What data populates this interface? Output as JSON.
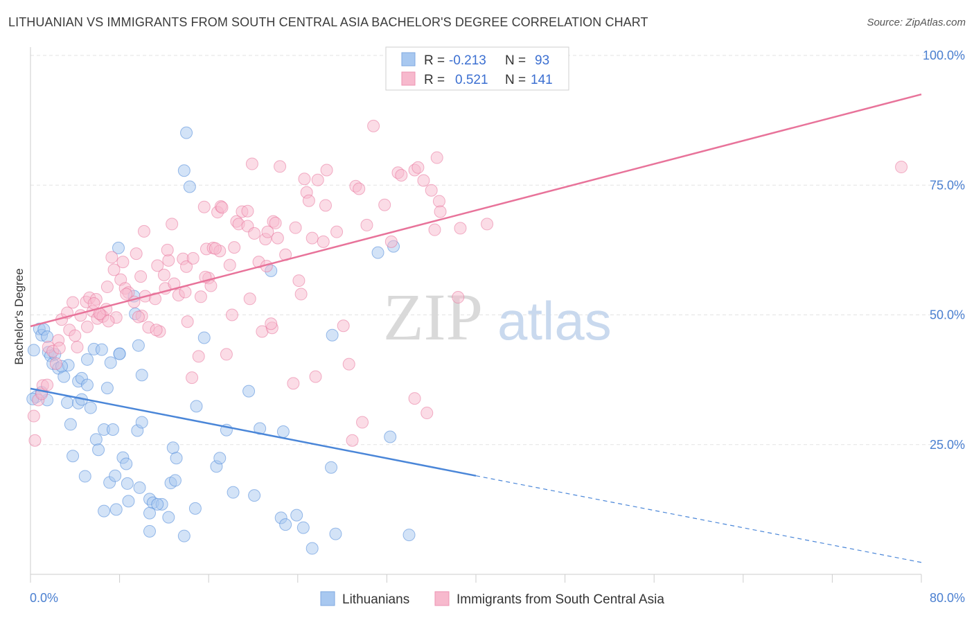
{
  "header": {
    "title": "LITHUANIAN VS IMMIGRANTS FROM SOUTH CENTRAL ASIA BACHELOR'S DEGREE CORRELATION CHART",
    "source": "Source: ZipAtlas.com"
  },
  "watermark": {
    "zip": "ZIP",
    "atlas": "atlas"
  },
  "legend_top": {
    "rows": [
      {
        "r_label": "R = ",
        "r_value": "-0.213",
        "n_label": "N = ",
        "n_value": "93",
        "color": "#a8c8f0"
      },
      {
        "r_label": "R = ",
        "r_value": "0.521",
        "n_label": "N = ",
        "n_value": "141",
        "color": "#f7b9cd"
      }
    ]
  },
  "legend_bottom": {
    "items": [
      {
        "label": "Lithuanians",
        "color": "#a8c8f0"
      },
      {
        "label": "Immigrants from South Central Asia",
        "color": "#f7b9cd"
      }
    ]
  },
  "chart_data": {
    "type": "scatter",
    "title": "LITHUANIAN VS IMMIGRANTS FROM SOUTH CENTRAL ASIA BACHELOR'S DEGREE CORRELATION CHART",
    "xlabel": "",
    "ylabel": "Bachelor's Degree",
    "xlim": [
      0,
      80
    ],
    "ylim": [
      0,
      100
    ],
    "x_tick_labels": [
      "0.0%",
      "80.0%"
    ],
    "y_ticks": [
      25,
      50,
      75,
      100
    ],
    "y_tick_labels": [
      "25.0%",
      "50.0%",
      "75.0%",
      "100.0%"
    ],
    "grid": true,
    "legend_position": "bottom",
    "series": [
      {
        "name": "Lithuanians",
        "color": "#4a86d8",
        "fill": "#a8c8f0",
        "trend": {
          "x0": 0,
          "y0": 35.8,
          "x1": 40,
          "y1": 19.0,
          "dash_to_x": 80,
          "dash_to_y": 2.3
        },
        "points": [
          [
            0.3,
            43.2
          ],
          [
            0.8,
            47.3
          ],
          [
            1.0,
            46.1
          ],
          [
            1.2,
            47.2
          ],
          [
            1.5,
            45.8
          ],
          [
            1.6,
            42.8
          ],
          [
            1.8,
            42.1
          ],
          [
            2.0,
            40.6
          ],
          [
            2.5,
            39.7
          ],
          [
            3.0,
            38.1
          ],
          [
            3.4,
            40.3
          ],
          [
            4.3,
            37.2
          ],
          [
            4.6,
            37.8
          ],
          [
            5.1,
            41.4
          ],
          [
            5.1,
            36.5
          ],
          [
            5.7,
            43.4
          ],
          [
            6.4,
            43.3
          ],
          [
            7.2,
            40.8
          ],
          [
            6.9,
            35.9
          ],
          [
            8.0,
            42.5
          ],
          [
            1.5,
            33.6
          ],
          [
            3.3,
            33.1
          ],
          [
            3.6,
            28.9
          ],
          [
            4.3,
            33.0
          ],
          [
            4.6,
            33.7
          ],
          [
            5.4,
            32.1
          ],
          [
            5.9,
            26.0
          ],
          [
            6.1,
            24.0
          ],
          [
            6.6,
            27.9
          ],
          [
            7.4,
            27.9
          ],
          [
            9.6,
            27.7
          ],
          [
            10.0,
            29.3
          ],
          [
            3.8,
            22.8
          ],
          [
            4.9,
            18.9
          ],
          [
            7.1,
            17.7
          ],
          [
            7.6,
            19.0
          ],
          [
            8.3,
            22.5
          ],
          [
            8.6,
            21.3
          ],
          [
            8.7,
            17.5
          ],
          [
            9.8,
            16.7
          ],
          [
            6.6,
            12.2
          ],
          [
            7.7,
            12.5
          ],
          [
            8.8,
            14.1
          ],
          [
            10.7,
            14.5
          ],
          [
            11.0,
            13.8
          ],
          [
            10.7,
            11.8
          ],
          [
            11.8,
            13.5
          ],
          [
            12.4,
            11.0
          ],
          [
            10.7,
            8.3
          ],
          [
            13.8,
            7.4
          ],
          [
            12.8,
            24.4
          ],
          [
            13.1,
            22.4
          ],
          [
            12.6,
            17.6
          ],
          [
            13.0,
            18.1
          ],
          [
            14.9,
            32.4
          ],
          [
            16.7,
            20.8
          ],
          [
            17.0,
            22.4
          ],
          [
            17.6,
            27.8
          ],
          [
            14.8,
            12.7
          ],
          [
            18.2,
            15.8
          ],
          [
            19.6,
            35.3
          ],
          [
            20.1,
            15.2
          ],
          [
            20.6,
            28.1
          ],
          [
            22.5,
            10.9
          ],
          [
            22.9,
            9.6
          ],
          [
            22.7,
            27.5
          ],
          [
            23.9,
            11.4
          ],
          [
            24.5,
            9.0
          ],
          [
            25.3,
            5.0
          ],
          [
            27.0,
            20.6
          ],
          [
            27.4,
            7.8
          ],
          [
            32.3,
            26.5
          ],
          [
            34.0,
            7.6
          ],
          [
            7.9,
            62.9
          ],
          [
            10.0,
            38.4
          ],
          [
            14.0,
            85.1
          ],
          [
            13.8,
            77.8
          ],
          [
            14.3,
            74.7
          ],
          [
            15.6,
            45.6
          ],
          [
            21.6,
            58.5
          ],
          [
            9.4,
            50.2
          ],
          [
            9.7,
            44.1
          ],
          [
            27.1,
            46.1
          ],
          [
            31.2,
            62.0
          ],
          [
            32.6,
            63.2
          ],
          [
            0.5,
            34.2
          ],
          [
            0.2,
            33.8
          ],
          [
            1.0,
            35.1
          ],
          [
            2.2,
            42.4
          ],
          [
            2.8,
            40.1
          ],
          [
            9.3,
            53.6
          ],
          [
            11.4,
            13.5
          ],
          [
            8.0,
            42.5
          ]
        ]
      },
      {
        "name": "Immigrants from South Central Asia",
        "color": "#e8739a",
        "fill": "#f7b9cd",
        "trend": {
          "x0": 0,
          "y0": 47.8,
          "x1": 80,
          "y1": 92.5
        },
        "points": [
          [
            0.3,
            30.5
          ],
          [
            0.4,
            25.8
          ],
          [
            0.7,
            33.6
          ],
          [
            1.0,
            34.8
          ],
          [
            1.1,
            36.4
          ],
          [
            1.5,
            36.5
          ],
          [
            1.6,
            43.8
          ],
          [
            2.0,
            43.0
          ],
          [
            2.3,
            40.6
          ],
          [
            2.5,
            45.1
          ],
          [
            2.6,
            43.6
          ],
          [
            2.8,
            49.1
          ],
          [
            3.3,
            50.4
          ],
          [
            3.5,
            47.1
          ],
          [
            3.8,
            52.4
          ],
          [
            4.0,
            46.0
          ],
          [
            4.2,
            43.8
          ],
          [
            4.5,
            49.9
          ],
          [
            5.0,
            52.5
          ],
          [
            5.1,
            47.7
          ],
          [
            5.3,
            53.3
          ],
          [
            5.6,
            50.7
          ],
          [
            5.9,
            53.0
          ],
          [
            6.0,
            49.3
          ],
          [
            6.3,
            50.1
          ],
          [
            6.5,
            49.7
          ],
          [
            6.8,
            51.1
          ],
          [
            6.9,
            55.4
          ],
          [
            7.3,
            61.1
          ],
          [
            7.5,
            58.7
          ],
          [
            7.7,
            49.5
          ],
          [
            8.1,
            56.8
          ],
          [
            8.3,
            60.2
          ],
          [
            8.5,
            55.1
          ],
          [
            8.8,
            54.3
          ],
          [
            9.3,
            52.5
          ],
          [
            9.5,
            61.8
          ],
          [
            9.9,
            57.4
          ],
          [
            10.0,
            49.8
          ],
          [
            10.3,
            53.6
          ],
          [
            10.2,
            66.1
          ],
          [
            10.6,
            47.6
          ],
          [
            11.2,
            53.1
          ],
          [
            11.4,
            59.5
          ],
          [
            11.6,
            46.8
          ],
          [
            12.0,
            57.7
          ],
          [
            12.1,
            55.1
          ],
          [
            12.4,
            60.5
          ],
          [
            12.3,
            62.5
          ],
          [
            12.7,
            67.5
          ],
          [
            13.3,
            53.8
          ],
          [
            13.7,
            60.8
          ],
          [
            14.0,
            59.3
          ],
          [
            14.1,
            48.7
          ],
          [
            14.5,
            37.9
          ],
          [
            14.6,
            60.9
          ],
          [
            15.1,
            42.0
          ],
          [
            15.3,
            53.5
          ],
          [
            15.6,
            70.8
          ],
          [
            15.8,
            62.7
          ],
          [
            16.0,
            57.1
          ],
          [
            16.2,
            55.6
          ],
          [
            16.4,
            62.9
          ],
          [
            16.8,
            69.8
          ],
          [
            17.0,
            62.3
          ],
          [
            17.1,
            70.9
          ],
          [
            17.2,
            70.7
          ],
          [
            17.6,
            42.4
          ],
          [
            17.9,
            59.6
          ],
          [
            18.1,
            50.0
          ],
          [
            18.5,
            68.0
          ],
          [
            18.7,
            67.5
          ],
          [
            19.0,
            69.9
          ],
          [
            19.5,
            70.0
          ],
          [
            19.5,
            67.1
          ],
          [
            19.7,
            53.1
          ],
          [
            19.9,
            79.1
          ],
          [
            20.1,
            65.7
          ],
          [
            20.5,
            60.2
          ],
          [
            20.8,
            46.8
          ],
          [
            21.1,
            64.6
          ],
          [
            21.3,
            66.0
          ],
          [
            21.7,
            47.5
          ],
          [
            21.8,
            68.0
          ],
          [
            21.6,
            48.3
          ],
          [
            22.0,
            67.7
          ],
          [
            22.2,
            64.8
          ],
          [
            22.4,
            78.6
          ],
          [
            22.9,
            61.6
          ],
          [
            23.6,
            36.8
          ],
          [
            23.8,
            66.8
          ],
          [
            24.1,
            56.6
          ],
          [
            24.3,
            54.0
          ],
          [
            24.6,
            76.2
          ],
          [
            24.8,
            73.6
          ],
          [
            25.0,
            72.0
          ],
          [
            25.3,
            64.8
          ],
          [
            25.6,
            38.1
          ],
          [
            25.8,
            76.0
          ],
          [
            26.3,
            64.1
          ],
          [
            26.5,
            71.1
          ],
          [
            26.6,
            77.9
          ],
          [
            27.5,
            66.0
          ],
          [
            28.1,
            47.9
          ],
          [
            28.6,
            40.5
          ],
          [
            28.9,
            25.8
          ],
          [
            29.2,
            74.8
          ],
          [
            29.5,
            74.3
          ],
          [
            29.8,
            29.3
          ],
          [
            30.2,
            67.3
          ],
          [
            30.8,
            86.4
          ],
          [
            31.8,
            71.2
          ],
          [
            32.4,
            64.1
          ],
          [
            33.0,
            77.4
          ],
          [
            33.3,
            76.9
          ],
          [
            34.5,
            33.9
          ],
          [
            34.5,
            77.9
          ],
          [
            34.8,
            78.4
          ],
          [
            35.3,
            75.9
          ],
          [
            35.6,
            31.1
          ],
          [
            36.0,
            74.0
          ],
          [
            36.3,
            66.4
          ],
          [
            36.5,
            80.3
          ],
          [
            36.7,
            71.9
          ],
          [
            36.8,
            69.9
          ],
          [
            38.4,
            53.4
          ],
          [
            38.6,
            66.7
          ],
          [
            41.0,
            67.5
          ],
          [
            78.2,
            78.5
          ],
          [
            5.7,
            52.2
          ],
          [
            6.2,
            50.2
          ],
          [
            7.0,
            48.8
          ],
          [
            8.6,
            54.0
          ],
          [
            9.7,
            49.6
          ],
          [
            11.3,
            47.1
          ],
          [
            12.9,
            56.0
          ],
          [
            13.9,
            54.4
          ],
          [
            15.7,
            57.3
          ],
          [
            16.6,
            62.8
          ],
          [
            18.3,
            63.0
          ],
          [
            21.2,
            59.4
          ]
        ]
      }
    ]
  }
}
